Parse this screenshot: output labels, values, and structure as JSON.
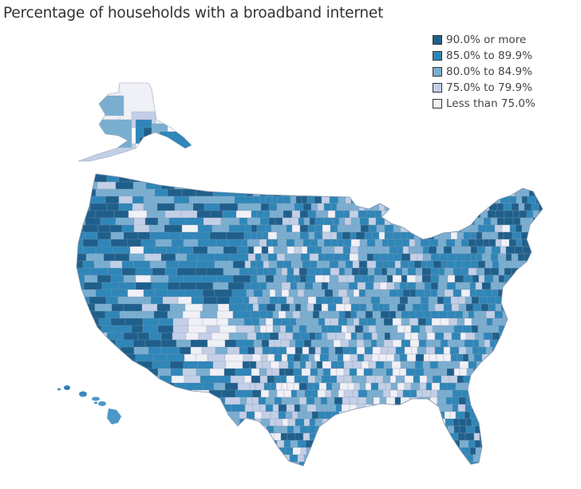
{
  "title": "Percentage of households with a broadband internet",
  "legend": {
    "items": [
      {
        "label": "90.0% or more",
        "color": "#1f5f8b"
      },
      {
        "label": "85.0% to 89.9%",
        "color": "#2f86b8"
      },
      {
        "label": "80.0% to 84.9%",
        "color": "#7aaed1"
      },
      {
        "label": "75.0% to 79.9%",
        "color": "#c3cfe6"
      },
      {
        "label": "Less than 75.0%",
        "color": "#f0f0f7"
      }
    ]
  },
  "map": {
    "type": "choropleth",
    "geography": "US counties",
    "insets": [
      "Alaska",
      "Hawaii"
    ],
    "border_color": "#8a9bb0"
  }
}
